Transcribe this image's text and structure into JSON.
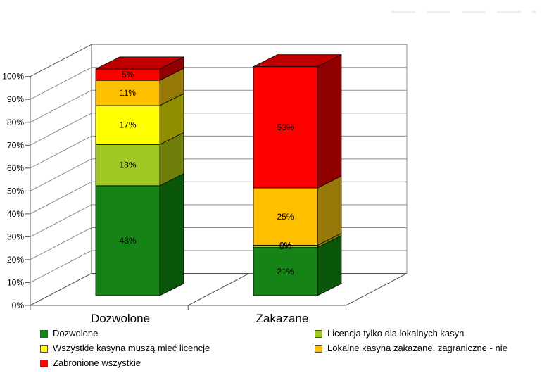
{
  "chart_data": {
    "type": "bar",
    "variant": "3d-stacked-100-percent",
    "categories": [
      "Dozwolone",
      "Zakazane"
    ],
    "series": [
      {
        "name": "Dozwolone",
        "values": [
          48,
          21
        ],
        "labels": [
          "48%",
          "21%"
        ],
        "color": "#168316",
        "side_color": "#0A560A",
        "top_color": "#0F6B0F"
      },
      {
        "name": "Licencja tylko dla lokalnych kasyn",
        "values": [
          18,
          1
        ],
        "labels": [
          "18%",
          "1%"
        ],
        "color": "#A0C822",
        "side_color": "#6F7D0B",
        "top_color": "#85A517"
      },
      {
        "name": "Wszystkie kasyna muszą mieć licencje",
        "values": [
          17,
          0
        ],
        "labels": [
          "17%",
          "0%"
        ],
        "color": "#FFFF00",
        "side_color": "#8E8E00",
        "top_color": "#CCCC00"
      },
      {
        "name": "Lokalne kasyna zakazane, zagraniczne - nie",
        "values": [
          11,
          25
        ],
        "labels": [
          "11%",
          "25%"
        ],
        "color": "#FFC000",
        "side_color": "#97790A",
        "top_color": "#CC9A00"
      },
      {
        "name": "Zabronione wszystkie",
        "values": [
          5,
          53
        ],
        "labels": [
          "5%",
          "53%"
        ],
        "color": "#FF0000",
        "side_color": "#900000",
        "top_color": "#C00000"
      }
    ],
    "y_ticks": [
      "0%",
      "10%",
      "20%",
      "30%",
      "40%",
      "50%",
      "60%",
      "70%",
      "80%",
      "90%",
      "100%"
    ],
    "ylim": [
      0,
      100
    ],
    "grid": true,
    "data_labels": true,
    "legend_position": "bottom",
    "colors": {
      "grid": "#8A8A8A",
      "wall_border": "#555555",
      "text": "#000000",
      "background": "#FFFFFF"
    }
  }
}
